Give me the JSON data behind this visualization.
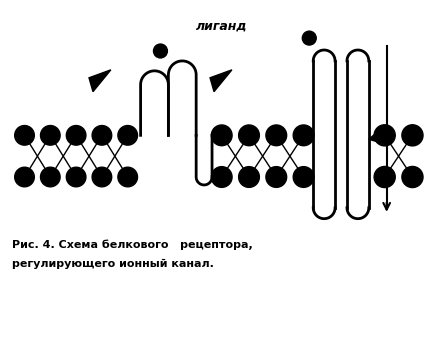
{
  "title_line1": "Рис. 4. Схема белкового   рецептора,",
  "title_line2": "регулирующего ионный канал.",
  "ligand_label": "лиганд",
  "bg_color": "#ffffff",
  "membrane_color": "#000000"
}
